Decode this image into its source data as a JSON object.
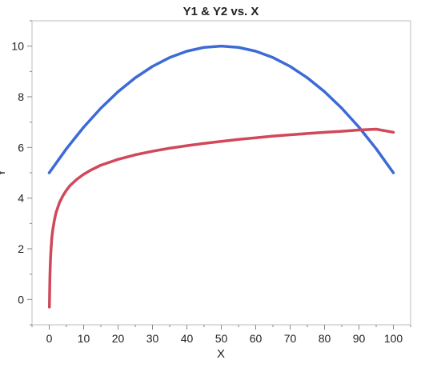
{
  "chart_data": {
    "type": "line",
    "title": "Y1 & Y2 vs. X",
    "xlabel": "X",
    "ylabel": "Y",
    "xlim": [
      -5,
      105
    ],
    "ylim": [
      -1,
      11
    ],
    "xticks": [
      0,
      10,
      20,
      30,
      40,
      50,
      60,
      70,
      80,
      90,
      100
    ],
    "yticks": [
      0,
      2,
      4,
      6,
      8,
      10
    ],
    "grid": false,
    "series": [
      {
        "name": "Y1",
        "color": "#3c6ad6",
        "x": [
          0,
          5,
          10,
          15,
          20,
          25,
          30,
          35,
          40,
          45,
          50,
          55,
          60,
          65,
          70,
          75,
          80,
          85,
          90,
          95,
          100
        ],
        "y": [
          5.0,
          5.95,
          6.8,
          7.55,
          8.2,
          8.75,
          9.2,
          9.55,
          9.8,
          9.95,
          10.0,
          9.95,
          9.8,
          9.55,
          9.2,
          8.75,
          8.2,
          7.55,
          6.8,
          5.95,
          5.0
        ]
      },
      {
        "name": "Y2",
        "color": "#d0485a",
        "x": [
          0.05,
          0.1,
          0.2,
          0.35,
          0.5,
          0.75,
          1,
          1.5,
          2,
          3,
          4,
          5,
          6,
          8,
          10,
          12,
          15,
          20,
          25,
          30,
          35,
          40,
          45,
          50,
          55,
          60,
          65,
          70,
          75,
          80,
          85,
          90,
          95,
          100
        ],
        "y": [
          -0.3,
          0.09,
          0.9,
          1.53,
          1.93,
          2.43,
          2.72,
          3.13,
          3.44,
          3.83,
          4.1,
          4.31,
          4.49,
          4.74,
          4.94,
          5.1,
          5.3,
          5.53,
          5.71,
          5.85,
          5.97,
          6.07,
          6.16,
          6.24,
          6.32,
          6.38,
          6.45,
          6.5,
          6.55,
          6.6,
          6.64,
          6.69,
          6.72,
          6.6
        ]
      }
    ]
  }
}
